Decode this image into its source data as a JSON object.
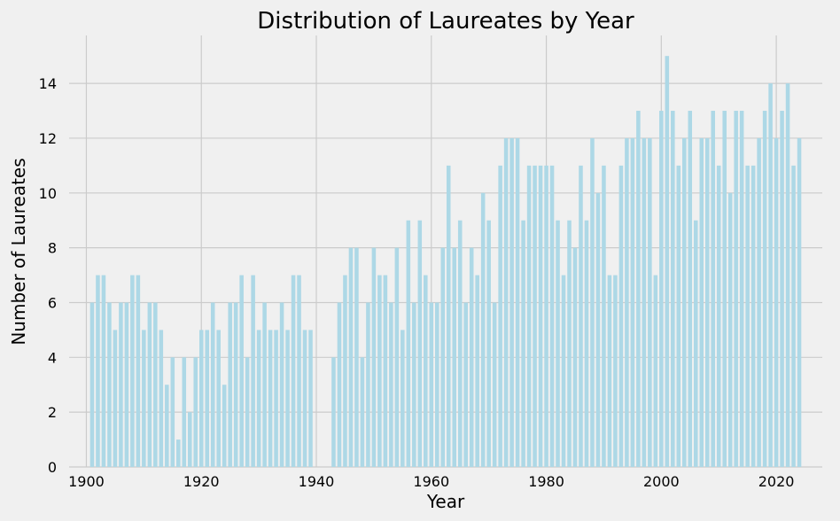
{
  "chart_data": {
    "type": "bar",
    "title": "Distribution of Laureates by Year",
    "xlabel": "Year",
    "ylabel": "Number of Laureates",
    "xlim": [
      1897,
      2028
    ],
    "ylim": [
      0,
      15.75
    ],
    "x_ticks": [
      1900,
      1920,
      1940,
      1960,
      1980,
      2000,
      2020
    ],
    "y_ticks": [
      0,
      2,
      4,
      6,
      8,
      10,
      12,
      14
    ],
    "grid": true,
    "bar_color": "#add8e6",
    "background": "#f0f0f0",
    "years": [
      1901,
      1902,
      1903,
      1904,
      1905,
      1906,
      1907,
      1908,
      1909,
      1910,
      1911,
      1912,
      1913,
      1914,
      1915,
      1916,
      1917,
      1918,
      1919,
      1920,
      1921,
      1922,
      1923,
      1924,
      1925,
      1926,
      1927,
      1928,
      1929,
      1930,
      1931,
      1932,
      1933,
      1934,
      1935,
      1936,
      1937,
      1938,
      1939,
      1943,
      1944,
      1945,
      1946,
      1947,
      1948,
      1949,
      1950,
      1951,
      1952,
      1953,
      1954,
      1955,
      1956,
      1957,
      1958,
      1959,
      1960,
      1961,
      1962,
      1963,
      1964,
      1965,
      1966,
      1967,
      1968,
      1969,
      1970,
      1971,
      1972,
      1973,
      1974,
      1975,
      1976,
      1977,
      1978,
      1979,
      1980,
      1981,
      1982,
      1983,
      1984,
      1985,
      1986,
      1987,
      1988,
      1989,
      1990,
      1991,
      1992,
      1993,
      1994,
      1995,
      1996,
      1997,
      1998,
      1999,
      2000,
      2001,
      2002,
      2003,
      2004,
      2005,
      2006,
      2007,
      2008,
      2009,
      2010,
      2011,
      2012,
      2013,
      2014,
      2015,
      2016,
      2017,
      2018,
      2019,
      2020,
      2021,
      2022,
      2023,
      2024
    ],
    "values": [
      6,
      7,
      7,
      6,
      5,
      6,
      6,
      7,
      7,
      5,
      6,
      6,
      5,
      3,
      4,
      1,
      4,
      2,
      4,
      5,
      5,
      6,
      5,
      3,
      6,
      6,
      7,
      4,
      7,
      5,
      6,
      5,
      5,
      6,
      5,
      7,
      7,
      5,
      5,
      4,
      6,
      7,
      8,
      8,
      4,
      6,
      8,
      7,
      7,
      6,
      8,
      5,
      9,
      6,
      9,
      7,
      6,
      6,
      8,
      11,
      8,
      9,
      6,
      8,
      7,
      10,
      9,
      6,
      11,
      12,
      12,
      12,
      9,
      11,
      11,
      11,
      11,
      11,
      9,
      7,
      9,
      8,
      11,
      9,
      12,
      10,
      11,
      7,
      7,
      11,
      12,
      12,
      13,
      12,
      12,
      7,
      13,
      15,
      13,
      11,
      12,
      13,
      9,
      12,
      12,
      13,
      11,
      13,
      10,
      13,
      13,
      11,
      11,
      12,
      13,
      14,
      12,
      13,
      14,
      11,
      12
    ]
  }
}
